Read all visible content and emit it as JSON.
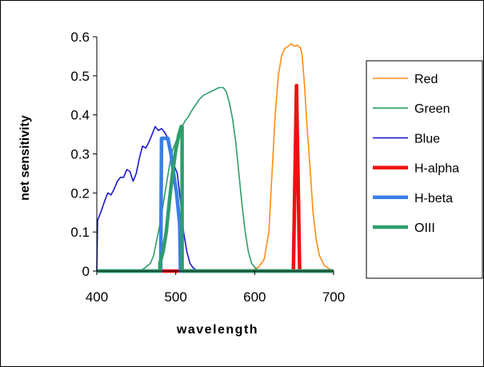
{
  "chart_data": {
    "type": "line",
    "title": "",
    "xlabel": "wavelength",
    "ylabel": "net sensitivity",
    "xlim": [
      400,
      700
    ],
    "ylim": [
      0,
      0.6
    ],
    "x_ticks": [
      "400",
      "500",
      "600",
      "700"
    ],
    "y_ticks": [
      "0",
      "0.1",
      "0.2",
      "0.3",
      "0.4",
      "0.5",
      "0.6"
    ],
    "grid": false,
    "legend_position": "right",
    "series": [
      {
        "name": "Red",
        "color": "#ff8c1a",
        "width": "thin",
        "points": [
          [
            595,
            0
          ],
          [
            605,
            0.01
          ],
          [
            612,
            0.03
          ],
          [
            618,
            0.1
          ],
          [
            622,
            0.25
          ],
          [
            626,
            0.4
          ],
          [
            630,
            0.5
          ],
          [
            634,
            0.55
          ],
          [
            638,
            0.57
          ],
          [
            642,
            0.575
          ],
          [
            646,
            0.582
          ],
          [
            650,
            0.576
          ],
          [
            654,
            0.578
          ],
          [
            658,
            0.572
          ],
          [
            660,
            0.555
          ],
          [
            663,
            0.48
          ],
          [
            666,
            0.38
          ],
          [
            670,
            0.27
          ],
          [
            674,
            0.15
          ],
          [
            678,
            0.08
          ],
          [
            682,
            0.04
          ],
          [
            688,
            0.015
          ],
          [
            695,
            0.005
          ],
          [
            700,
            0
          ]
        ]
      },
      {
        "name": "Green",
        "color": "#2e9e6b",
        "width": "thin",
        "points": [
          [
            400,
            0
          ],
          [
            455,
            0
          ],
          [
            462,
            0.01
          ],
          [
            468,
            0.02
          ],
          [
            472,
            0.04
          ],
          [
            476,
            0.08
          ],
          [
            480,
            0.12
          ],
          [
            484,
            0.17
          ],
          [
            488,
            0.22
          ],
          [
            492,
            0.27
          ],
          [
            496,
            0.31
          ],
          [
            500,
            0.33
          ],
          [
            504,
            0.35
          ],
          [
            508,
            0.37
          ],
          [
            512,
            0.385
          ],
          [
            516,
            0.395
          ],
          [
            520,
            0.41
          ],
          [
            525,
            0.425
          ],
          [
            530,
            0.44
          ],
          [
            535,
            0.45
          ],
          [
            540,
            0.455
          ],
          [
            545,
            0.46
          ],
          [
            550,
            0.465
          ],
          [
            555,
            0.47
          ],
          [
            560,
            0.47
          ],
          [
            564,
            0.46
          ],
          [
            568,
            0.43
          ],
          [
            572,
            0.39
          ],
          [
            576,
            0.33
          ],
          [
            580,
            0.25
          ],
          [
            584,
            0.17
          ],
          [
            588,
            0.1
          ],
          [
            592,
            0.05
          ],
          [
            596,
            0.02
          ],
          [
            600,
            0.01
          ],
          [
            605,
            0
          ],
          [
            700,
            0
          ]
        ]
      },
      {
        "name": "Blue",
        "color": "#1a1acc",
        "width": "thin",
        "points": [
          [
            400,
            0
          ],
          [
            401,
            0.13
          ],
          [
            405,
            0.15
          ],
          [
            410,
            0.18
          ],
          [
            414,
            0.2
          ],
          [
            418,
            0.195
          ],
          [
            422,
            0.21
          ],
          [
            426,
            0.23
          ],
          [
            430,
            0.24
          ],
          [
            434,
            0.24
          ],
          [
            438,
            0.26
          ],
          [
            442,
            0.255
          ],
          [
            446,
            0.23
          ],
          [
            450,
            0.25
          ],
          [
            454,
            0.29
          ],
          [
            458,
            0.32
          ],
          [
            462,
            0.315
          ],
          [
            466,
            0.33
          ],
          [
            470,
            0.35
          ],
          [
            474,
            0.37
          ],
          [
            478,
            0.36
          ],
          [
            482,
            0.365
          ],
          [
            486,
            0.355
          ],
          [
            490,
            0.34
          ],
          [
            494,
            0.3
          ],
          [
            498,
            0.27
          ],
          [
            502,
            0.25
          ],
          [
            506,
            0.18
          ],
          [
            510,
            0.1
          ],
          [
            514,
            0.05
          ],
          [
            518,
            0.02
          ],
          [
            522,
            0.008
          ],
          [
            526,
            0.003
          ],
          [
            530,
            0
          ],
          [
            700,
            0
          ]
        ]
      },
      {
        "name": "H-alpha",
        "color": "#ee1111",
        "width": "thick",
        "points": [
          [
            480,
            0
          ],
          [
            505,
            0
          ],
          [
            649,
            0
          ],
          [
            653,
            0.475
          ],
          [
            657,
            0
          ],
          [
            700,
            0
          ]
        ]
      },
      {
        "name": "H-beta",
        "color": "#3a7ee8",
        "width": "thick",
        "points": [
          [
            400,
            0
          ],
          [
            481,
            0
          ],
          [
            482,
            0.34
          ],
          [
            490,
            0.34
          ],
          [
            494,
            0.3
          ],
          [
            498,
            0.24
          ],
          [
            501,
            0.2
          ],
          [
            505,
            0.12
          ],
          [
            506,
            0
          ],
          [
            700,
            0
          ]
        ]
      },
      {
        "name": "OIII",
        "color": "#2e9e6b",
        "width": "thick",
        "points": [
          [
            400,
            0
          ],
          [
            480,
            0
          ],
          [
            480,
            0.02
          ],
          [
            484,
            0.05
          ],
          [
            488,
            0.1
          ],
          [
            492,
            0.18
          ],
          [
            496,
            0.25
          ],
          [
            500,
            0.31
          ],
          [
            504,
            0.35
          ],
          [
            507,
            0.37
          ],
          [
            508,
            0.37
          ],
          [
            508,
            0
          ],
          [
            700,
            0
          ]
        ]
      }
    ]
  },
  "legend": {
    "items": [
      {
        "label": "Red",
        "color": "#ff8c1a",
        "width": "thin"
      },
      {
        "label": "Green",
        "color": "#2e9e6b",
        "width": "thin"
      },
      {
        "label": "Blue",
        "color": "#1a1acc",
        "width": "thin"
      },
      {
        "label": "H-alpha",
        "color": "#ee1111",
        "width": "thick"
      },
      {
        "label": "H-beta",
        "color": "#3a7ee8",
        "width": "thick"
      },
      {
        "label": "OIII",
        "color": "#2e9e6b",
        "width": "thick"
      }
    ]
  }
}
